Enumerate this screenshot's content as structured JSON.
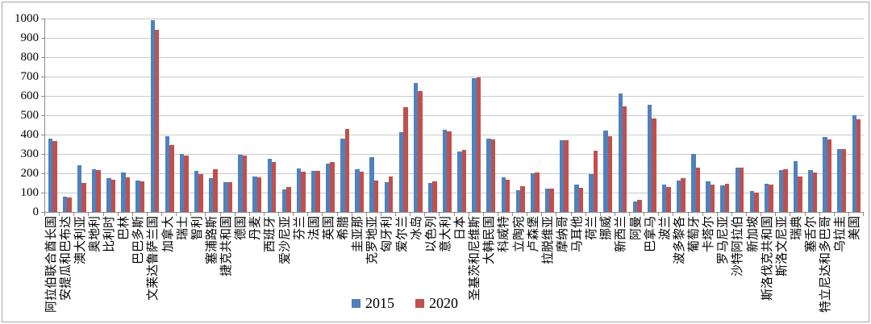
{
  "legend": {
    "items": [
      "2015",
      "2020"
    ]
  },
  "colors": {
    "series_2015": "#4f81bd",
    "series_2020": "#c0504d",
    "gridline": "#c9c9c9",
    "axis": "#8c8c8c"
  },
  "chart_data": {
    "type": "bar",
    "title": "",
    "xlabel": "",
    "ylabel": "",
    "ylim": [
      0,
      1000
    ],
    "ytick_step": 100,
    "ytick_labels": [
      "0",
      "100",
      "200",
      "300",
      "400",
      "500",
      "600",
      "700",
      "800",
      "900",
      "1000"
    ],
    "grid": true,
    "legend_position": "bottom",
    "categories": [
      "阿拉伯联合酋长国",
      "安提瓜和巴布达",
      "澳大利亚",
      "奥地利",
      "比利时",
      "巴林",
      "巴巴多斯",
      "文莱达鲁萨兰国",
      "加拿大",
      "瑞士",
      "智利",
      "塞浦路斯",
      "捷克共和国",
      "德国",
      "丹麦",
      "西班牙",
      "爱沙尼亚",
      "芬兰",
      "法国",
      "英国",
      "希腊",
      "圭亚那",
      "克罗地亚",
      "匈牙利",
      "爱尔兰",
      "冰岛",
      "以色列",
      "意大利",
      "日本",
      "圣基茨和尼维斯",
      "大韩民国",
      "科威特",
      "立陶宛",
      "卢森堡",
      "拉脱维亚",
      "摩纳哥",
      "马耳他",
      "荷兰",
      "挪威",
      "新西兰",
      "阿曼",
      "巴拿马",
      "波兰",
      "波多黎各",
      "葡萄牙",
      "卡塔尔",
      "罗马尼亚",
      "沙特阿拉伯",
      "新加坡",
      "斯洛伐克共和国",
      "斯洛文尼亚",
      "瑞典",
      "塞舌尔",
      "特立尼达和多巴哥",
      "乌拉圭",
      "美国"
    ],
    "series": [
      {
        "name": "2015",
        "color": "#4f81bd",
        "values": [
          378,
          80,
          242,
          222,
          176,
          206,
          164,
          990,
          392,
          299,
          211,
          175,
          156,
          296,
          183,
          274,
          118,
          226,
          212,
          249,
          380,
          221,
          282,
          153,
          412,
          668,
          149,
          424,
          313,
          693,
          378,
          178,
          114,
          199,
          122,
          371,
          140,
          197,
          419,
          614,
          53,
          553,
          142,
          164,
          300,
          160,
          136,
          229,
          108,
          144,
          218,
          264,
          218,
          389,
          326,
          500
        ]
      },
      {
        "name": "2020",
        "color": "#c0504d",
        "values": [
          368,
          75,
          150,
          218,
          167,
          178,
          160,
          940,
          347,
          292,
          194,
          221,
          156,
          292,
          181,
          260,
          128,
          207,
          212,
          257,
          430,
          208,
          162,
          185,
          541,
          626,
          158,
          418,
          322,
          697,
          375,
          168,
          132,
          206,
          122,
          372,
          125,
          317,
          392,
          544,
          64,
          483,
          128,
          175,
          229,
          142,
          146,
          229,
          102,
          140,
          221,
          183,
          204,
          375,
          326,
          479
        ]
      }
    ]
  }
}
